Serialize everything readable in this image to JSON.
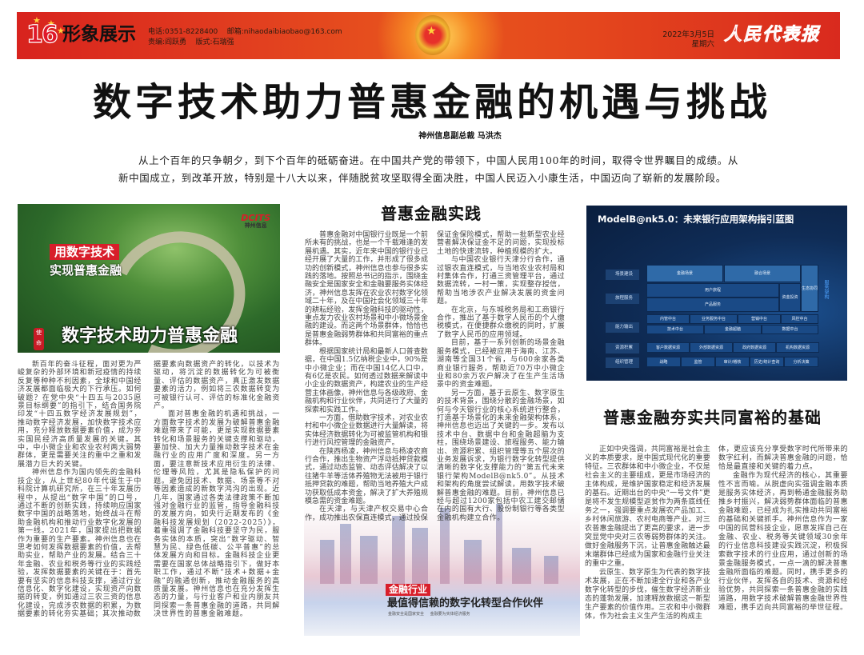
{
  "header": {
    "page_number": "16",
    "section": "形象展示",
    "phone": "电话:0351-8228400    邮箱:nihaodaibiaobao@163.com",
    "editors": "责编:阎跃勇    版式:石瑞强",
    "date": "2022年3月5日",
    "weekday": "星期六",
    "newspaper_name": "人民代表报",
    "accent_color": "#d8231e"
  },
  "article": {
    "title": "数字技术助力普惠金融的机遇与挑战",
    "byline": "神州信息副总裁 马洪杰",
    "lead": "从上个百年的只争朝夕，到下个百年的砥砺奋进。在中国共产党的带领下，中国人民用100年的时间，取得令世界瞩目的成绩。从新中国成立，到改革开放，特别是十八大以来，伴随脱贫攻坚取得全面决胜，中国人民迈入小康生活，中国迈向了崭新的发展阶段。",
    "left_col1": [
      "新百年的奋斗征程，面对更为严峻复杂的外部环境和新冠疫情的持续反复等种种不利因素，全球和中国经济发展都面临极大的下行承压。如何破题？在党中央“十四五与2035愿景目标纲要”的指引下，结合国务院印发“十四五数字经济发展规划”，推动数字经济发展，加快数字技术应用，充分释放数据要素价值，成为夯实国民经济高质量发展的关键。其中，中小微企业和农业农村两大弱势群体，更是需要关注的重中之重和发展潜力巨大的关键。",
      "神州信息作为国内领先的金融科技企业，从上世纪80年代诞生于中科院计算机研究所，在三十年发展历程中，从提出“数字中国”的口号，通过不断的创新实践，持续响应国家数字中国的战略落地，始终战斗在帮助金融机构和推动行业数字化发展的第一线。2021年，国家提出把数据作为重要的生产要素。神州信息也在思考如何发挥数据要素的价值，去帮助实业，帮助产业的发展。结合三十年金融、农业和税务等行业的实践经验，发挥数据要素的关键在于：首先要有坚实的信息科技支撑，通过行业信息化、数字化建设，实现资产向数据的转变，例如通过三农三资的信息化建设，完成涉农数据的积累，为数据要素的转化夯实基础；其次推动数"
    ],
    "left_col2": [
      "据要素向数据资产的转化，以技术为驱动，将沉淀的数据转化为可被衡量、评估的数据资产，真正激发数据要素的活力，例如将三农数据转变为可被银行认可、评估的标准化金融资产。",
      "面对普惠金融的机遇和挑战，一方面数字技术的发展为破解普惠金融难题带来了可能，更是实现数据要素转化和场景服务的关键支撑和驱动，要加快、加大力量推动数字技术在金融行业的应用广度和深度。另一方面，要注意新技术应用衍生的法律、伦理等风险，尤其是隐私保护的问题。避免因技术、数据、场景等不对等因素造成的新数字鸿沟的出现。近几年，国家通过各类法律政策不断加强对金融行业的监管，指导金融科技的发展方向，如央行近期发布的《金融科技发展规划（2022-2025）》，着重强调了金融科技要坚守为民，服务实体的本质，突出“数字驱动、智慧为民、绿色低碳、公平普惠”的总体发展方向和目标。金融科技企业更需要在国家总体战略指引下，做好本职工作，通过不断“技术+数据+金融”的融通创新，推动金融服务的高质量发展。神州信息也在充分发挥生态的力量，与行业客户和业内朋友共同探索一条普惠金融的道路，共同解决世界性的普惠金融难题。"
    ],
    "mid_heading": "普惠金融实践",
    "mid_col1": [
      "普惠金融对中国银行业既是一个前所未有的挑战，也是一个千载难逢的发展机遇。其实，近年来中国的银行业已经开展了大量的工作，并形成了很多成功的创新模式，神州信息也参与很多实践的落地。按照总书记的指示，围绕金融安全是国家安全和金融要服务实体经济，神州信息发挥在农业农村数字化领域二十年，及在中国社会化领域三十年的耕耘经验，发挥金融科技的驱动性，重点发力农业农村场景和中小微场景金融的建设。而这两个场景群体，恰恰也是普惠金融弱势群体和共同富裕的重点群体。",
      "根据国家统计局和最新人口普查数据，在中国1.5亿纳税企业中，90%是中小微企业；而在中国14亿人口中，有6亿是农民。如何透过数据来解读中小企业的数据资产，构建农业的生产经营主体画像，神州信息与各级政府、金融机构和行业伙伴，共同进行了大量的探索和实践工作。",
      "一方面，借助数字技术，对农业农村和中小微企业数据进行大量解读，将实体经济数据转化为可被监管机构和银行进行风控管理的金融资产。",
      "在陕西杨凌，神州信息与杨凌农商行合作，推出生物资产浮动抵押贷款模式，通过动态监管、动态评估解决了以往猪牛羊等活体养殖物无法被用于银行抵押贷款的难题，帮助当地养殖大户成功获取低成本资金，解决了扩大养殖规模急需的资金难题。",
      "在天津，与天津产权交易中心合作，成功推出农保直连模式，通过投保"
    ],
    "mid_col2": [
      "保证金保险模式，帮助一批新型农业经营者解决保证金不足的问题，实现投标土地的快速流转，种植规模的扩大。",
      "与中国农业银行天津分行合作，通过银农直连模式，与当地农业农村局和村集体合作，打通三资管理平台，通过数据流转，一村一策，实现整存授信，帮助当地涉农产业解决发展的资金问题。",
      "在北京，与东城税务局和工商银行合作，推出了基于数字人民币的个人缴税模式，在便捷群众缴税的同时，扩展了数字人民币的应用领域。",
      "目前，基于一系列创新的场景金融服务模式，已经被应用于海南、江苏、湖南等全国31个省，与600余家各类商业银行服务，帮助近70万中小微企业和80余万农户解决了在生产生活场景中的资金难题。",
      "另一方面，基于云原生、数字原生的技术背景，围绕分散的金融场景，如何与今天银行业的核心系统进行整合，打造基于场景化的未来金融架构体系，神州信息也迈出了关键的一步。发布以技术中台、数据中台和金融超脑为支柱，围绕场景建设、旅程服务、能力输出、资源积累、组织管理等五个层次的业务发展诉求，为银行数字化转型提供清晰的数字化支撑能力的“第五代未来银行架构ModelB@nk5.0”。从技术和架构的角度尝试解读，用数字技术破解普惠金融的难题。目前，神州信息已经与超过1200家包括中农工建交邮储在内的国有大行、股份制银行等各类型金融机构建立合作。"
    ],
    "right_heading": "普惠金融夯实共同富裕的基础",
    "right_col1": [
      "正如中央强调，共同富裕是社会主义的本质要求，是中国式现代化的重要特征。三农群体和中小微企业，不仅是社会主义的主要组成，更是市场经济的主体构成，是维护国家稳定和经济发展的基石。近期出台的中央“一号文件”更是将不发生规模型返贫作为两条底线任务之一，强调要重点发展农产品加工、乡村休闲旅游、农村电商等产业。对三农普惠金融提出了更高的要求，进一步突显党中央对三农等弱势群体的关注。做好金融服务下沉，让普惠金融触达最末端群体已经成为国家和金融行业关注的重中之重。",
      "云原生、数字原生为代表的数字技术发展，正在不断加速全行业和各产业数字化转型的步伐，催生数字经济新业态的蓬勃发展，加速释放数据这一新型生产要素的价值作用。三农和中小微群体，作为社会主义生产生活的构成主"
    ],
    "right_col2": [
      "体，更应该充分享受数字时代所带来的数字红利，而解决普惠金融的问题，恰恰是最直接和关键的着力点。",
      "金融作为现代经济的核心，其重要性不言而喻。从脱虚向实强调金融本质是服务实体经济，再到畅通金融服务助推乡村振兴，解决弱势群体面临的普惠金融难题，已经成为扎实推动共同富裕的基础和关键抓手。神州信息作为一家中国的民营科技企业，愿意发挥自己在金融、农业、税务等关键领域30余年的行业信息科技建设实践沉淀，积极探索数字技术的行业应用，通过创新的场景金融服务模式，一点一滴的解决普惠金融所面临的难题。同时，携手更多的行业伙伴，发挥各自的技术、资源和经验优势，共同探索一条普惠金融的实践道路，用数字技术破解普惠金融世界性难题，携手迈向共同富裕的举世征程。"
    ]
  },
  "image_forest": {
    "tag1": "用数字技术",
    "tag2": "实现普惠金融",
    "logo": "DCITS",
    "logo_sub": "神州信息",
    "caption": "数字技术助力普惠金融",
    "seal": "使命"
  },
  "image_blueprint": {
    "title": "ModelB@nk5.0：未来银行应用架构指引蓝图",
    "layers": [
      "场景建设",
      "旅程服务",
      "能力输出",
      "资源积累",
      "组织管理"
    ],
    "cells": {
      "scene": [
        "金融场景",
        "融合场景"
      ],
      "journey": [
        "用户旅程",
        "产品服务",
        "资金投资",
        "生态协同"
      ],
      "ability_row1": [
        "内管中台",
        "业务服务中台",
        "营销中台",
        "风控中台"
      ],
      "ability_row2": [
        "技术中台",
        "金融超脑",
        "数据中台"
      ],
      "resources": [
        "客户数据资源",
        "外部数据资源",
        "政府数据资源",
        "机构数据资源"
      ],
      "organization": [
        "战略",
        "监管",
        "审计/稽核",
        "历史/统计查询",
        "分析决策"
      ],
      "side": "服务架构"
    }
  },
  "image_city": {
    "tag": "金融行业",
    "slogan": "最值得信赖的数字化转型合作伙伴",
    "subtitle": "金融安全是国家安全 金融要为实体经济服务"
  }
}
